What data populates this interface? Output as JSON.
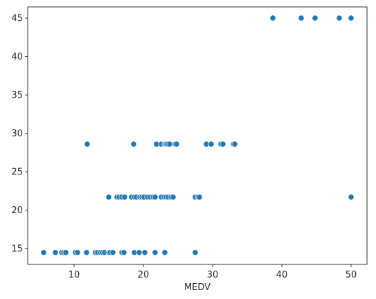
{
  "chart_data": {
    "type": "scatter",
    "title": "",
    "xlabel": "MEDV",
    "ylabel": "",
    "xlim": [
      3.3,
      52.3
    ],
    "ylim": [
      12.95,
      46.45
    ],
    "xticks": [
      10,
      20,
      30,
      40,
      50
    ],
    "yticks": [
      15,
      20,
      25,
      30,
      35,
      40,
      45
    ],
    "xtick_labels": [
      "10",
      "20",
      "30",
      "40",
      "50"
    ],
    "ytick_labels": [
      "15",
      "20",
      "25",
      "30",
      "35",
      "40",
      "45"
    ],
    "grid": false,
    "legend": null,
    "marker_color": "#1f77b4",
    "marker_edge_color": "#ffffff",
    "series": [
      {
        "x": [
          5.6,
          7.3,
          8.2,
          8.5,
          8.8,
          10.2,
          10.5,
          11.8,
          13.1,
          13.4,
          13.8,
          14.1,
          14.4,
          15.0,
          15.2,
          15.6,
          16.9,
          17.2,
          18.7,
          19.4,
          20.2,
          21.7,
          23.1,
          27.5,
          15.0,
          16.2,
          16.5,
          16.9,
          17.3,
          18.3,
          18.7,
          19.0,
          19.5,
          19.8,
          20.1,
          20.6,
          21.0,
          21.4,
          21.7,
          22.6,
          23.0,
          23.3,
          23.6,
          24.0,
          24.3,
          27.5,
          27.9,
          28.1,
          50.0,
          11.9,
          18.6,
          21.9,
          22.6,
          23.1,
          23.3,
          23.5,
          23.8,
          24.6,
          24.8,
          29.1,
          29.8,
          31.2,
          31.5,
          33.0,
          33.2,
          38.7,
          42.8,
          44.8,
          48.3,
          50.0
        ],
        "y": [
          14.5,
          14.5,
          14.5,
          14.5,
          14.5,
          14.5,
          14.5,
          14.5,
          14.5,
          14.5,
          14.5,
          14.5,
          14.5,
          14.5,
          14.5,
          14.5,
          14.5,
          14.5,
          14.5,
          14.5,
          14.5,
          14.5,
          14.5,
          14.5,
          21.7,
          21.7,
          21.7,
          21.7,
          21.7,
          21.7,
          21.7,
          21.7,
          21.7,
          21.7,
          21.7,
          21.7,
          21.7,
          21.7,
          21.7,
          21.7,
          21.7,
          21.7,
          21.7,
          21.7,
          21.7,
          21.7,
          21.7,
          21.7,
          21.7,
          28.6,
          28.6,
          28.6,
          28.6,
          28.6,
          28.6,
          28.6,
          28.6,
          28.6,
          28.6,
          28.6,
          28.6,
          28.6,
          28.6,
          28.6,
          28.6,
          45.0,
          45.0,
          45.0,
          45.0,
          45.0
        ]
      }
    ]
  }
}
